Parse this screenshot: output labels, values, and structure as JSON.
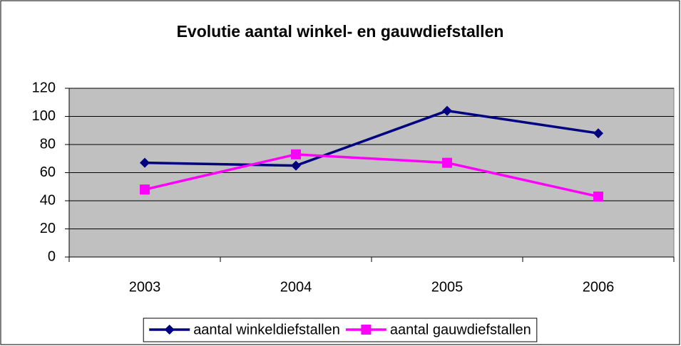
{
  "chart_data": {
    "type": "line",
    "title": "Evolutie aantal winkel- en gauwdiefstallen",
    "categories": [
      "2003",
      "2004",
      "2005",
      "2006"
    ],
    "series": [
      {
        "name": "aantal winkeldiefstallen",
        "color": "#000080",
        "marker": "diamond",
        "values": [
          67,
          65,
          104,
          88
        ]
      },
      {
        "name": "aantal gauwdiefstallen",
        "color": "#ff00ff",
        "marker": "square",
        "values": [
          48,
          73,
          67,
          43
        ]
      }
    ],
    "ylim": [
      0,
      120
    ],
    "yticks": [
      0,
      20,
      40,
      60,
      80,
      100,
      120
    ],
    "grid": true,
    "legend": "bottom"
  }
}
